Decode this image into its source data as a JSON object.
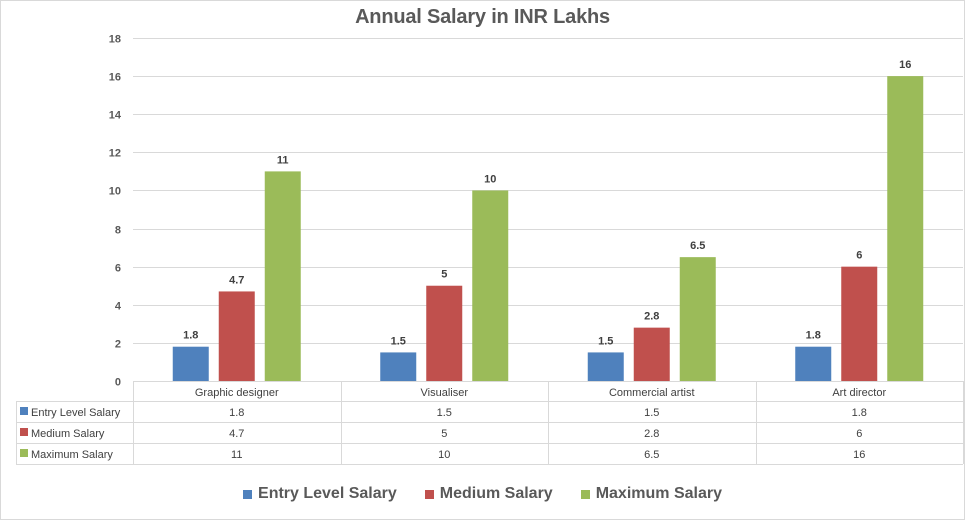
{
  "chart_data": {
    "type": "bar",
    "title": "Annual Salary in INR Lakhs",
    "xlabel": "",
    "ylabel": "",
    "ylim": [
      0,
      18
    ],
    "yticks": [
      "0",
      "2",
      "4",
      "6",
      "8",
      "10",
      "12",
      "14",
      "16",
      "18"
    ],
    "grid": true,
    "legend_position": "bottom",
    "categories": [
      "Graphic designer",
      "Visualiser",
      "Commercial artist",
      "Art director"
    ],
    "series": [
      {
        "name": "Entry Level Salary",
        "color": "#4F81BD",
        "values": [
          1.8,
          1.5,
          1.5,
          1.8
        ],
        "labels": [
          "1.8",
          "1.5",
          "1.5",
          "1.8"
        ]
      },
      {
        "name": "Medium Salary",
        "color": "#C0504D",
        "values": [
          4.7,
          5,
          2.8,
          6
        ],
        "labels": [
          "4.7",
          "5",
          "2.8",
          "6"
        ]
      },
      {
        "name": "Maximum Salary",
        "color": "#9BBB59",
        "values": [
          11,
          10,
          6.5,
          16
        ],
        "labels": [
          "11",
          "10",
          "6.5",
          "16"
        ]
      }
    ]
  }
}
